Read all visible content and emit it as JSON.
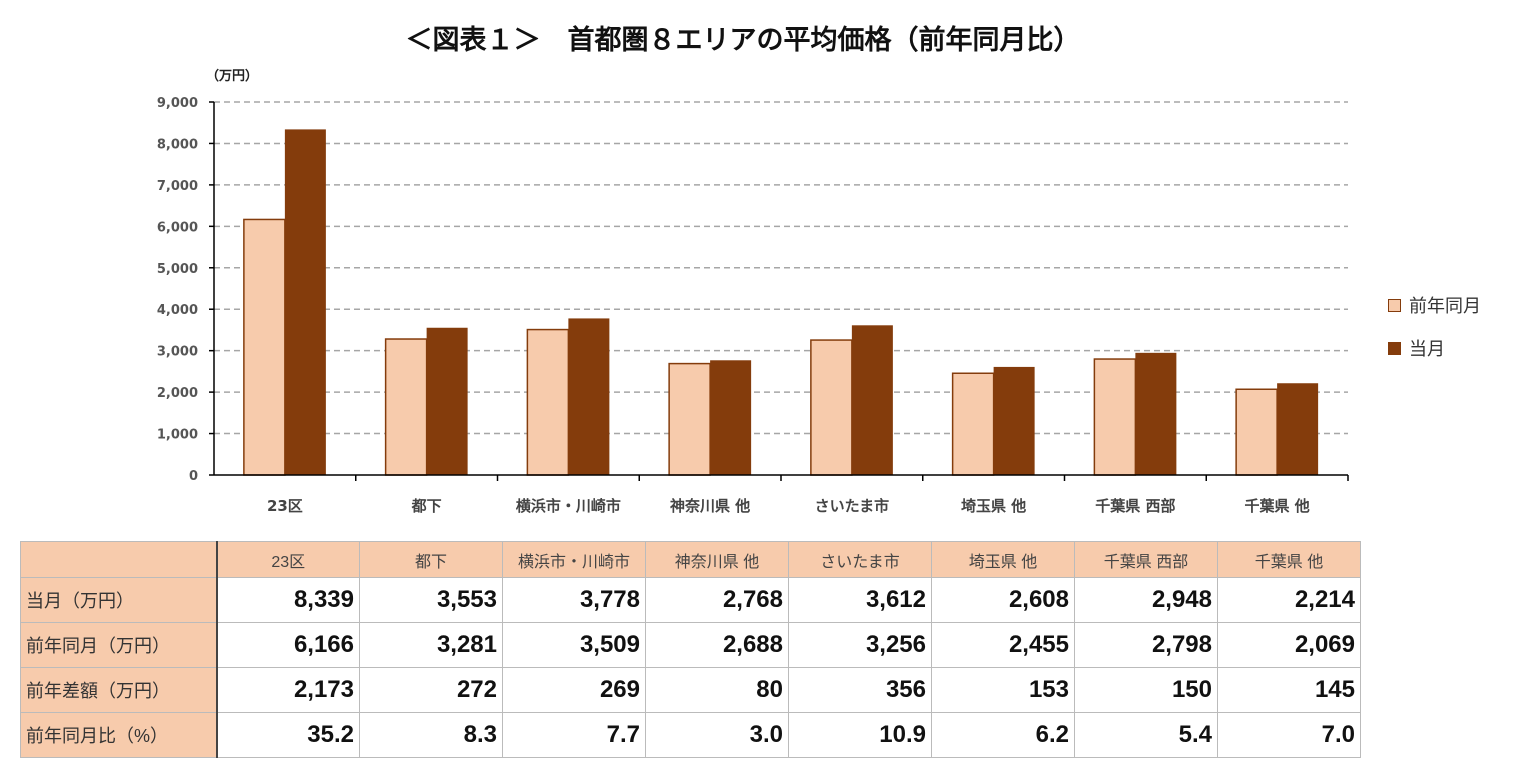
{
  "title": "＜図表１＞　首都圏８エリアの平均価格（前年同月比）",
  "chart_data": {
    "type": "bar",
    "title": "＜図表１＞　首都圏８エリアの平均価格（前年同月比）",
    "ylabel": "（万円）",
    "ylim": [
      0,
      9000
    ],
    "yticks": [
      0,
      1000,
      2000,
      3000,
      4000,
      5000,
      6000,
      7000,
      8000,
      9000
    ],
    "ytick_labels": [
      "0",
      "1,000",
      "2,000",
      "3,000",
      "4,000",
      "5,000",
      "6,000",
      "7,000",
      "8,000",
      "9,000"
    ],
    "grid": true,
    "legend_position": "right",
    "categories": [
      "23区",
      "都下",
      "横浜市・川崎市",
      "神奈川県 他",
      "さいたま市",
      "埼玉県 他",
      "千葉県 西部",
      "千葉県 他"
    ],
    "series": [
      {
        "name": "前年同月",
        "color": "#f7cbac",
        "values": [
          6166,
          3281,
          3509,
          2688,
          3256,
          2455,
          2798,
          2069
        ]
      },
      {
        "name": "当月",
        "color": "#843c0c",
        "values": [
          8339,
          3553,
          3778,
          2768,
          3612,
          2608,
          2948,
          2214
        ]
      }
    ]
  },
  "table": {
    "columns": [
      "23区",
      "都下",
      "横浜市・川崎市",
      "神奈川県 他",
      "さいたま市",
      "埼玉県 他",
      "千葉県 西部",
      "千葉県 他"
    ],
    "rows": [
      {
        "label": "当月（万円）",
        "values": [
          "8,339",
          "3,553",
          "3,778",
          "2,768",
          "3,612",
          "2,608",
          "2,948",
          "2,214"
        ]
      },
      {
        "label": "前年同月（万円）",
        "values": [
          "6,166",
          "3,281",
          "3,509",
          "2,688",
          "3,256",
          "2,455",
          "2,798",
          "2,069"
        ]
      },
      {
        "label": "前年差額（万円）",
        "values": [
          "2,173",
          "272",
          "269",
          "80",
          "356",
          "153",
          "150",
          "145"
        ]
      },
      {
        "label": "前年同月比（%）",
        "values": [
          "35.2",
          "8.3",
          "7.7",
          "3.0",
          "10.9",
          "6.2",
          "5.4",
          "7.0"
        ]
      }
    ]
  }
}
